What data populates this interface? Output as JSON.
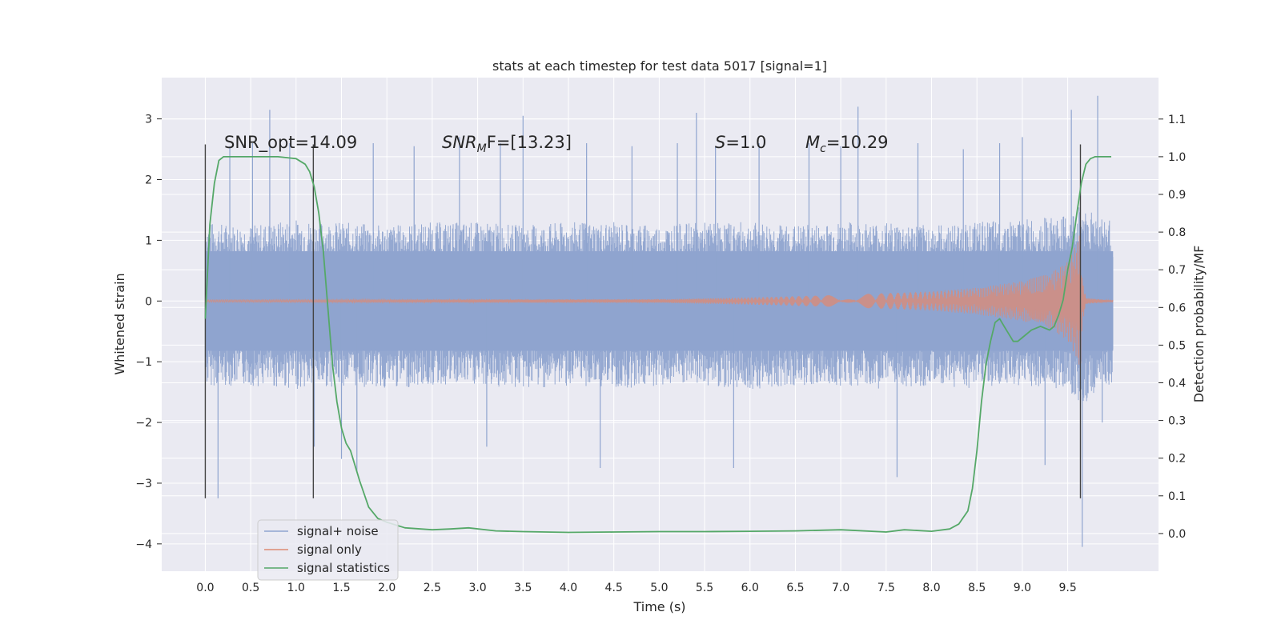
{
  "chart_data": {
    "type": "line",
    "title": "stats at each timestep for test data 5017 [signal=1]",
    "xlabel": "Time (s)",
    "ylabel": "Whitened strain",
    "y2label": "Detection probability/MF",
    "xlim": [
      -0.48,
      10.5
    ],
    "ylim": [
      -4.45,
      3.68
    ],
    "y2lim": [
      -0.1,
      1.21
    ],
    "xticks": [
      "0.0",
      "0.5",
      "1.0",
      "1.5",
      "2.0",
      "2.5",
      "3.0",
      "3.5",
      "4.0",
      "4.5",
      "5.0",
      "5.5",
      "6.0",
      "6.5",
      "7.0",
      "7.5",
      "8.0",
      "8.5",
      "9.0",
      "9.5"
    ],
    "yticks": [
      "3",
      "2",
      "1",
      "0",
      "−1",
      "−2",
      "−3",
      "−4"
    ],
    "y2ticks": [
      "1.1",
      "1.0",
      "0.9",
      "0.8",
      "0.7",
      "0.6",
      "0.5",
      "0.4",
      "0.3",
      "0.2",
      "0.1",
      "0.0"
    ],
    "annotations": {
      "snr_opt": "SNR_opt=14.09",
      "snr_mf_main": "SNR",
      "snr_mf_sub": "M",
      "snr_mf_rest": "F=[13.23]",
      "s_main": "S",
      "s_rest": "=1.0",
      "mc_main": "M",
      "mc_sub": "c",
      "mc_rest": "=10.29"
    },
    "grid": true,
    "legend_position": "lower-left",
    "vlines": [
      {
        "x": 0.0,
        "y": [
          -3.25,
          2.58
        ]
      },
      {
        "x": 1.19,
        "y": [
          -3.25,
          2.58
        ]
      },
      {
        "x": 9.64,
        "y": [
          -3.25,
          2.58
        ]
      }
    ],
    "series": [
      {
        "name": "signal+ noise",
        "color": "#8fa4cf",
        "axis": "left",
        "envelope": {
          "x": [
            0.0,
            0.5,
            1.0,
            1.5,
            2.0,
            2.5,
            3.0,
            3.5,
            4.0,
            4.5,
            5.0,
            5.5,
            6.0,
            6.5,
            7.0,
            7.5,
            8.0,
            8.5,
            9.0,
            9.5,
            9.65,
            10.0
          ],
          "upper": [
            1.3,
            1.25,
            1.35,
            1.3,
            1.25,
            1.3,
            1.3,
            1.25,
            1.3,
            1.3,
            1.25,
            1.3,
            1.3,
            1.25,
            1.3,
            1.3,
            1.25,
            1.3,
            1.35,
            1.4,
            1.6,
            1.3
          ],
          "lower": [
            -1.4,
            -1.4,
            -1.45,
            -1.4,
            -1.45,
            -1.4,
            -1.4,
            -1.45,
            -1.4,
            -1.45,
            -1.4,
            -1.4,
            -1.45,
            -1.4,
            -1.4,
            -1.45,
            -1.4,
            -1.45,
            -1.4,
            -1.45,
            -1.7,
            -1.4
          ]
        },
        "spikes": [
          {
            "x": 0.14,
            "y": -3.25
          },
          {
            "x": 0.27,
            "y": 2.55
          },
          {
            "x": 0.52,
            "y": 2.6
          },
          {
            "x": 0.71,
            "y": 3.15
          },
          {
            "x": 0.93,
            "y": 2.6
          },
          {
            "x": 1.2,
            "y": -2.4
          },
          {
            "x": 1.5,
            "y": -2.6
          },
          {
            "x": 1.67,
            "y": -2.8
          },
          {
            "x": 1.85,
            "y": 2.6
          },
          {
            "x": 2.3,
            "y": 2.55
          },
          {
            "x": 2.8,
            "y": 2.7
          },
          {
            "x": 3.1,
            "y": -2.4
          },
          {
            "x": 3.25,
            "y": 2.6
          },
          {
            "x": 3.5,
            "y": 3.05
          },
          {
            "x": 4.2,
            "y": 2.6
          },
          {
            "x": 4.35,
            "y": -2.75
          },
          {
            "x": 4.7,
            "y": 2.55
          },
          {
            "x": 5.2,
            "y": 2.6
          },
          {
            "x": 5.41,
            "y": 3.1
          },
          {
            "x": 5.62,
            "y": 2.55
          },
          {
            "x": 5.82,
            "y": -2.75
          },
          {
            "x": 6.1,
            "y": 2.6
          },
          {
            "x": 6.65,
            "y": 2.6
          },
          {
            "x": 7.0,
            "y": 2.55
          },
          {
            "x": 7.19,
            "y": 3.2
          },
          {
            "x": 7.62,
            "y": -2.9
          },
          {
            "x": 7.85,
            "y": 2.6
          },
          {
            "x": 8.35,
            "y": 2.5
          },
          {
            "x": 8.75,
            "y": 2.6
          },
          {
            "x": 9.0,
            "y": 2.7
          },
          {
            "x": 9.25,
            "y": -2.7
          },
          {
            "x": 9.54,
            "y": 3.15
          },
          {
            "x": 9.66,
            "y": -4.05
          },
          {
            "x": 9.83,
            "y": 3.38
          },
          {
            "x": 9.88,
            "y": -2.0
          }
        ]
      },
      {
        "name": "signal only",
        "color": "#dd8a73",
        "axis": "left",
        "envelope": {
          "x": [
            0.0,
            5.0,
            6.0,
            7.0,
            8.0,
            8.5,
            9.0,
            9.3,
            9.5,
            9.6,
            9.64,
            9.66,
            9.7,
            10.0
          ],
          "amplitude": [
            0.02,
            0.03,
            0.06,
            0.1,
            0.16,
            0.22,
            0.33,
            0.45,
            0.65,
            0.95,
            1.25,
            0.4,
            0.05,
            0.01
          ]
        }
      },
      {
        "name": "signal statistics",
        "color": "#55a868",
        "axis": "right",
        "x": [
          0.0,
          0.05,
          0.1,
          0.15,
          0.2,
          0.3,
          0.5,
          0.8,
          1.0,
          1.1,
          1.15,
          1.2,
          1.25,
          1.3,
          1.35,
          1.4,
          1.45,
          1.5,
          1.55,
          1.6,
          1.7,
          1.8,
          1.9,
          2.0,
          2.2,
          2.5,
          2.7,
          2.9,
          3.2,
          3.5,
          4.0,
          4.5,
          5.0,
          5.5,
          6.0,
          6.5,
          7.0,
          7.5,
          7.7,
          8.0,
          8.2,
          8.3,
          8.4,
          8.45,
          8.5,
          8.55,
          8.6,
          8.65,
          8.7,
          8.75,
          8.8,
          8.85,
          8.9,
          8.95,
          9.0,
          9.1,
          9.2,
          9.3,
          9.35,
          9.4,
          9.45,
          9.5,
          9.55,
          9.6,
          9.65,
          9.7,
          9.75,
          9.8,
          9.9,
          9.98
        ],
        "y": [
          0.57,
          0.82,
          0.93,
          0.99,
          1.0,
          1.0,
          1.0,
          1.0,
          0.995,
          0.98,
          0.96,
          0.92,
          0.85,
          0.75,
          0.6,
          0.45,
          0.35,
          0.28,
          0.24,
          0.22,
          0.14,
          0.07,
          0.04,
          0.03,
          0.015,
          0.01,
          0.012,
          0.015,
          0.007,
          0.005,
          0.003,
          0.004,
          0.005,
          0.005,
          0.006,
          0.007,
          0.01,
          0.004,
          0.01,
          0.006,
          0.012,
          0.025,
          0.06,
          0.12,
          0.22,
          0.35,
          0.45,
          0.51,
          0.56,
          0.57,
          0.55,
          0.53,
          0.51,
          0.51,
          0.52,
          0.54,
          0.55,
          0.54,
          0.55,
          0.58,
          0.62,
          0.7,
          0.76,
          0.85,
          0.93,
          0.98,
          0.995,
          1.0,
          1.0,
          1.0
        ]
      }
    ]
  }
}
